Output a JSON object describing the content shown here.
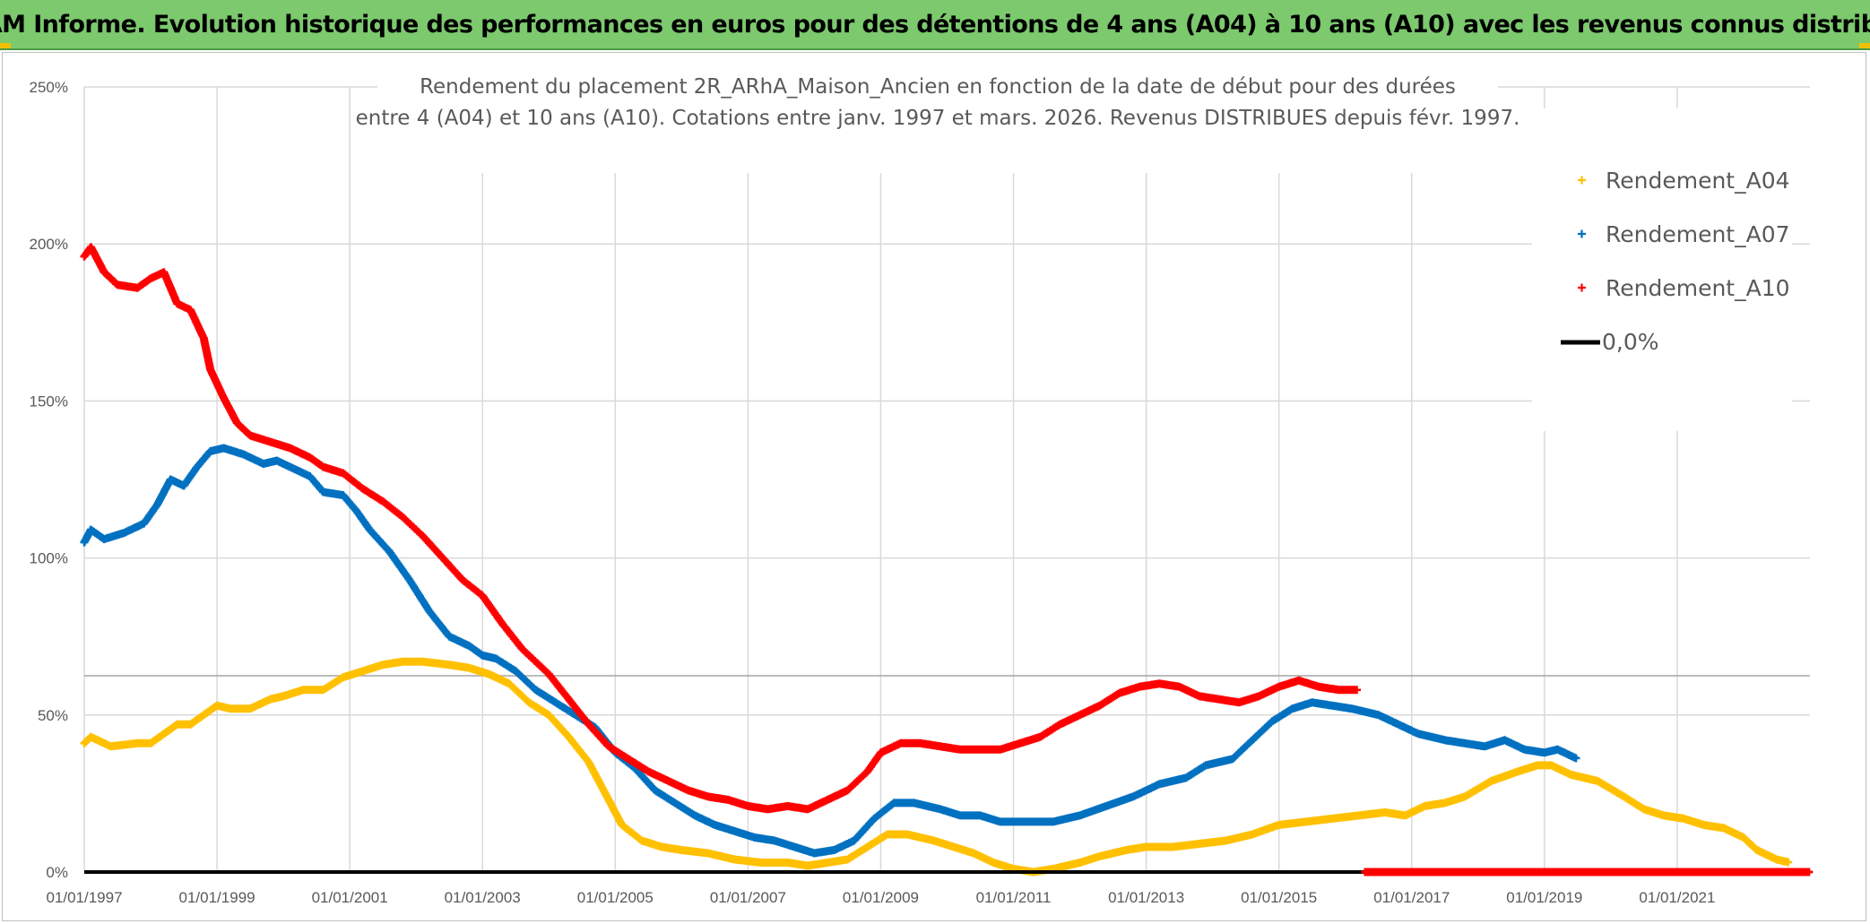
{
  "header": {
    "title": "ADAM Informe. Evolution historique des performances en euros pour des détentions de 4 ans (A04) à 10 ans (A10) avec les revenus connus distribués"
  },
  "chart_data": {
    "type": "line",
    "subtitle_line1": "Rendement du placement 2R_ARhA_Maison_Ancien en fonction de la date de début pour des durées",
    "subtitle_line2": "entre 4 (A04) et 10 ans (A10). Cotations entre janv. 1997 et mars. 2026. Revenus DISTRIBUES depuis févr. 1997.",
    "xlabel": "",
    "ylabel": "",
    "x_range": [
      1997.0,
      2023.0
    ],
    "ylim": [
      0,
      250
    ],
    "y_ticks": [
      "0%",
      "50%",
      "100%",
      "150%",
      "200%",
      "250%"
    ],
    "x_ticks": [
      "01/01/1997",
      "01/01/1999",
      "01/01/2001",
      "01/01/2003",
      "01/01/2005",
      "01/01/2007",
      "01/01/2009",
      "01/01/2011",
      "01/01/2013",
      "01/01/2015",
      "01/01/2017",
      "01/01/2019",
      "01/01/2021"
    ],
    "legend_position": "right",
    "series": [
      {
        "name": "Rendement_A04",
        "color": "#ffc000",
        "points": [
          [
            1997.0,
            41
          ],
          [
            1997.1,
            43
          ],
          [
            1997.4,
            40
          ],
          [
            1997.8,
            41
          ],
          [
            1998.0,
            41
          ],
          [
            1998.2,
            44
          ],
          [
            1998.4,
            47
          ],
          [
            1998.6,
            47
          ],
          [
            1998.8,
            50
          ],
          [
            1999.0,
            53
          ],
          [
            1999.2,
            52
          ],
          [
            1999.5,
            52
          ],
          [
            1999.8,
            55
          ],
          [
            2000.0,
            56
          ],
          [
            2000.3,
            58
          ],
          [
            2000.6,
            58
          ],
          [
            2000.9,
            62
          ],
          [
            2001.2,
            64
          ],
          [
            2001.5,
            66
          ],
          [
            2001.8,
            67
          ],
          [
            2002.1,
            67
          ],
          [
            2002.5,
            66
          ],
          [
            2002.8,
            65
          ],
          [
            2003.1,
            63
          ],
          [
            2003.4,
            60
          ],
          [
            2003.7,
            54
          ],
          [
            2004.0,
            50
          ],
          [
            2004.3,
            43
          ],
          [
            2004.6,
            35
          ],
          [
            2004.9,
            23
          ],
          [
            2005.1,
            15
          ],
          [
            2005.4,
            10
          ],
          [
            2005.7,
            8
          ],
          [
            2006.0,
            7
          ],
          [
            2006.4,
            6
          ],
          [
            2006.8,
            4
          ],
          [
            2007.2,
            3
          ],
          [
            2007.6,
            3
          ],
          [
            2007.9,
            2
          ],
          [
            2008.2,
            3
          ],
          [
            2008.5,
            4
          ],
          [
            2008.8,
            8
          ],
          [
            2009.1,
            12
          ],
          [
            2009.4,
            12
          ],
          [
            2009.8,
            10
          ],
          [
            2010.1,
            8
          ],
          [
            2010.4,
            6
          ],
          [
            2010.7,
            3
          ],
          [
            2011.0,
            1
          ],
          [
            2011.3,
            0
          ],
          [
            2011.6,
            1
          ],
          [
            2012.0,
            3
          ],
          [
            2012.3,
            5
          ],
          [
            2012.7,
            7
          ],
          [
            2013.0,
            8
          ],
          [
            2013.4,
            8
          ],
          [
            2013.8,
            9
          ],
          [
            2014.2,
            10
          ],
          [
            2014.6,
            12
          ],
          [
            2015.0,
            15
          ],
          [
            2015.4,
            16
          ],
          [
            2015.8,
            17
          ],
          [
            2016.2,
            18
          ],
          [
            2016.6,
            19
          ],
          [
            2016.9,
            18
          ],
          [
            2017.2,
            21
          ],
          [
            2017.5,
            22
          ],
          [
            2017.8,
            24
          ],
          [
            2018.2,
            29
          ],
          [
            2018.6,
            32
          ],
          [
            2018.9,
            34
          ],
          [
            2019.1,
            34
          ],
          [
            2019.4,
            31
          ],
          [
            2019.8,
            29
          ],
          [
            2020.2,
            24
          ],
          [
            2020.5,
            20
          ],
          [
            2020.8,
            18
          ],
          [
            2021.1,
            17
          ],
          [
            2021.4,
            15
          ],
          [
            2021.7,
            14
          ],
          [
            2022.0,
            11
          ],
          [
            2022.2,
            7
          ],
          [
            2022.5,
            4
          ],
          [
            2022.7,
            3
          ]
        ]
      },
      {
        "name": "Rendement_A07",
        "color": "#0070c0",
        "points": [
          [
            1997.0,
            105
          ],
          [
            1997.1,
            109
          ],
          [
            1997.3,
            106
          ],
          [
            1997.6,
            108
          ],
          [
            1997.9,
            111
          ],
          [
            1998.1,
            117
          ],
          [
            1998.3,
            125
          ],
          [
            1998.5,
            123
          ],
          [
            1998.7,
            129
          ],
          [
            1998.9,
            134
          ],
          [
            1999.1,
            135
          ],
          [
            1999.4,
            133
          ],
          [
            1999.7,
            130
          ],
          [
            1999.9,
            131
          ],
          [
            2000.1,
            129
          ],
          [
            2000.4,
            126
          ],
          [
            2000.6,
            121
          ],
          [
            2000.9,
            120
          ],
          [
            2001.1,
            115
          ],
          [
            2001.3,
            109
          ],
          [
            2001.6,
            102
          ],
          [
            2001.9,
            93
          ],
          [
            2002.2,
            83
          ],
          [
            2002.5,
            75
          ],
          [
            2002.8,
            72
          ],
          [
            2003.0,
            69
          ],
          [
            2003.2,
            68
          ],
          [
            2003.5,
            64
          ],
          [
            2003.8,
            58
          ],
          [
            2004.1,
            54
          ],
          [
            2004.4,
            50
          ],
          [
            2004.7,
            46
          ],
          [
            2005.0,
            38
          ],
          [
            2005.3,
            33
          ],
          [
            2005.6,
            26
          ],
          [
            2005.9,
            22
          ],
          [
            2006.2,
            18
          ],
          [
            2006.5,
            15
          ],
          [
            2006.8,
            13
          ],
          [
            2007.1,
            11
          ],
          [
            2007.4,
            10
          ],
          [
            2007.7,
            8
          ],
          [
            2008.0,
            6
          ],
          [
            2008.3,
            7
          ],
          [
            2008.6,
            10
          ],
          [
            2008.9,
            17
          ],
          [
            2009.2,
            22
          ],
          [
            2009.5,
            22
          ],
          [
            2009.9,
            20
          ],
          [
            2010.2,
            18
          ],
          [
            2010.5,
            18
          ],
          [
            2010.8,
            16
          ],
          [
            2011.2,
            16
          ],
          [
            2011.6,
            16
          ],
          [
            2012.0,
            18
          ],
          [
            2012.4,
            21
          ],
          [
            2012.8,
            24
          ],
          [
            2013.2,
            28
          ],
          [
            2013.6,
            30
          ],
          [
            2013.9,
            34
          ],
          [
            2014.3,
            36
          ],
          [
            2014.6,
            42
          ],
          [
            2014.9,
            48
          ],
          [
            2015.2,
            52
          ],
          [
            2015.5,
            54
          ],
          [
            2015.8,
            53
          ],
          [
            2016.1,
            52
          ],
          [
            2016.5,
            50
          ],
          [
            2016.8,
            47
          ],
          [
            2017.1,
            44
          ],
          [
            2017.5,
            42
          ],
          [
            2017.8,
            41
          ],
          [
            2018.1,
            40
          ],
          [
            2018.4,
            42
          ],
          [
            2018.7,
            39
          ],
          [
            2019.0,
            38
          ],
          [
            2019.2,
            39
          ],
          [
            2019.5,
            36
          ]
        ]
      },
      {
        "name": "Rendement_A10",
        "color": "#ff0000",
        "points": [
          [
            1997.0,
            196
          ],
          [
            1997.1,
            199
          ],
          [
            1997.3,
            191
          ],
          [
            1997.5,
            187
          ],
          [
            1997.8,
            186
          ],
          [
            1998.0,
            189
          ],
          [
            1998.2,
            191
          ],
          [
            1998.4,
            181
          ],
          [
            1998.6,
            179
          ],
          [
            1998.8,
            170
          ],
          [
            1998.9,
            160
          ],
          [
            1999.1,
            151
          ],
          [
            1999.3,
            143
          ],
          [
            1999.5,
            139
          ],
          [
            1999.8,
            137
          ],
          [
            2000.1,
            135
          ],
          [
            2000.4,
            132
          ],
          [
            2000.6,
            129
          ],
          [
            2000.9,
            127
          ],
          [
            2001.2,
            122
          ],
          [
            2001.5,
            118
          ],
          [
            2001.8,
            113
          ],
          [
            2002.1,
            107
          ],
          [
            2002.4,
            100
          ],
          [
            2002.7,
            93
          ],
          [
            2003.0,
            88
          ],
          [
            2003.3,
            79
          ],
          [
            2003.6,
            71
          ],
          [
            2004.0,
            63
          ],
          [
            2004.3,
            55
          ],
          [
            2004.6,
            47
          ],
          [
            2004.9,
            40
          ],
          [
            2005.2,
            36
          ],
          [
            2005.5,
            32
          ],
          [
            2005.8,
            29
          ],
          [
            2006.1,
            26
          ],
          [
            2006.4,
            24
          ],
          [
            2006.7,
            23
          ],
          [
            2007.0,
            21
          ],
          [
            2007.3,
            20
          ],
          [
            2007.6,
            21
          ],
          [
            2007.9,
            20
          ],
          [
            2008.2,
            23
          ],
          [
            2008.5,
            26
          ],
          [
            2008.8,
            32
          ],
          [
            2009.0,
            38
          ],
          [
            2009.3,
            41
          ],
          [
            2009.6,
            41
          ],
          [
            2009.9,
            40
          ],
          [
            2010.2,
            39
          ],
          [
            2010.5,
            39
          ],
          [
            2010.8,
            39
          ],
          [
            2011.1,
            41
          ],
          [
            2011.4,
            43
          ],
          [
            2011.7,
            47
          ],
          [
            2012.0,
            50
          ],
          [
            2012.3,
            53
          ],
          [
            2012.6,
            57
          ],
          [
            2012.9,
            59
          ],
          [
            2013.2,
            60
          ],
          [
            2013.5,
            59
          ],
          [
            2013.8,
            56
          ],
          [
            2014.1,
            55
          ],
          [
            2014.4,
            54
          ],
          [
            2014.7,
            56
          ],
          [
            2015.0,
            59
          ],
          [
            2015.3,
            61
          ],
          [
            2015.6,
            59
          ],
          [
            2015.9,
            58
          ],
          [
            2016.2,
            58
          ],
          [
            2016.3,
            0
          ],
          [
            2023.0,
            0
          ]
        ]
      }
    ],
    "legend": [
      {
        "name": "Rendement_A04",
        "color": "#ffc000",
        "marker": "+"
      },
      {
        "name": "Rendement_A07",
        "color": "#0070c0",
        "marker": "+"
      },
      {
        "name": "Rendement_A10",
        "color": "#ff0000",
        "marker": "+"
      },
      {
        "name": "0,0%",
        "color": "#000000",
        "marker": "line"
      }
    ],
    "zero_line": {
      "label": "0,0%",
      "color": "#000000",
      "value": 0
    },
    "gridlines": true
  }
}
